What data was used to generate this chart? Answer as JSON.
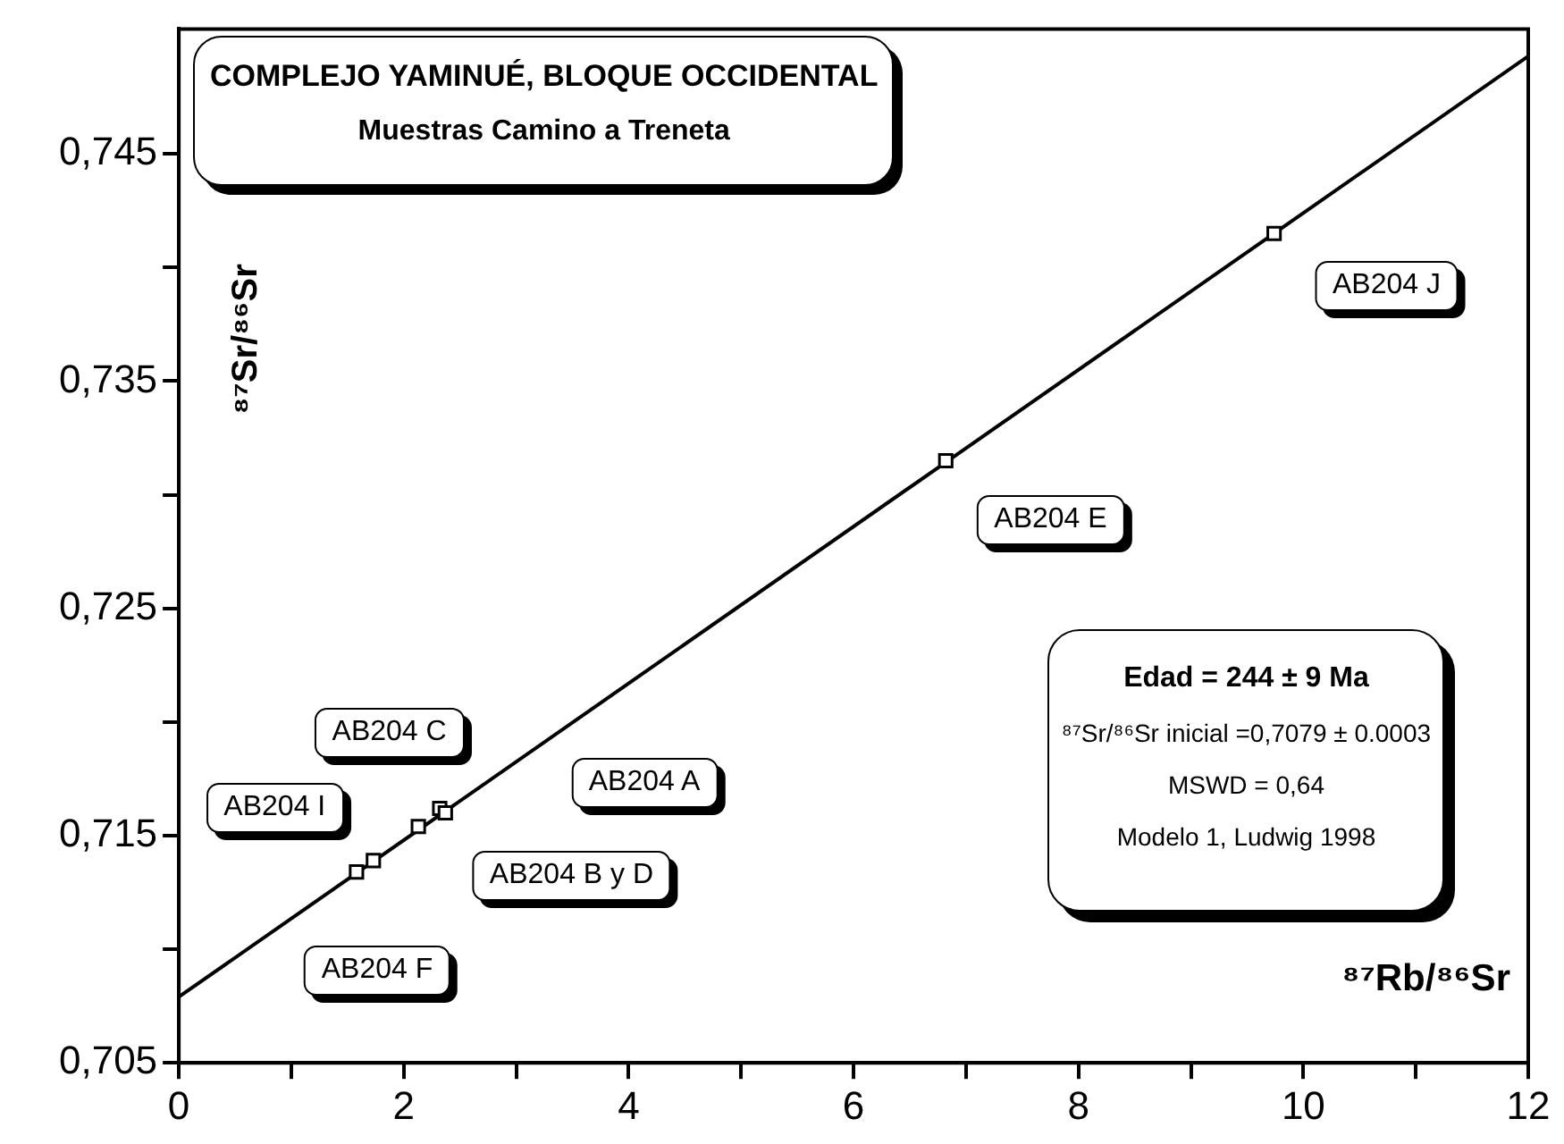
{
  "chart_data": {
    "type": "scatter",
    "title": "COMPLEJO YAMINUÉ, BLOQUE OCCIDENTAL",
    "subtitle": "Muestras Camino a Treneta",
    "xlabel": "⁸⁷Rb/⁸⁶Sr",
    "ylabel": "⁸⁷Sr/⁸⁶Sr",
    "series": [
      {
        "type": "line",
        "x": [
          0,
          12
        ],
        "values": [
          0.7079,
          0.7493
        ],
        "color": "#000000",
        "marker": "none"
      },
      {
        "x": [
          1.58,
          1.73,
          2.13,
          2.32,
          2.37,
          6.82,
          9.74
        ],
        "values": [
          0.7134,
          0.7139,
          0.7154,
          0.7162,
          0.716,
          0.7315,
          0.7415
        ],
        "color": "#000000",
        "marker": "square"
      }
    ],
    "grid": false,
    "legend": false,
    "xlim": [
      0,
      12
    ],
    "xticks": [
      0,
      {
        "value": 1,
        "label": null
      },
      2,
      {
        "value": 3,
        "label": null
      },
      4,
      {
        "value": 5,
        "label": null
      },
      6,
      {
        "value": 7,
        "label": null
      },
      8,
      {
        "value": 9,
        "label": null
      },
      10,
      {
        "value": 11,
        "label": null
      },
      12
    ],
    "ylim": [
      0.705,
      0.7505
    ],
    "yticks": [
      {
        "value": 0.705,
        "label": "0,705"
      },
      {
        "value": 0.71,
        "label": null
      },
      {
        "value": 0.715,
        "label": "0,715"
      },
      {
        "value": 0.72,
        "label": null
      },
      {
        "value": 0.725,
        "label": "0,725"
      },
      {
        "value": 0.73,
        "label": null
      },
      {
        "value": 0.735,
        "label": "0,735"
      },
      {
        "value": 0.74,
        "label": null
      },
      {
        "value": 0.745,
        "label": "0,745"
      }
    ],
    "annotations": [
      "AB204 C",
      "AB204 I",
      "AB204 A",
      "AB204 B y D",
      "AB204 F",
      "AB204 E",
      "AB204 J",
      "Edad = 244 ± 9 Ma",
      "⁸⁷Sr/⁸⁶Sr inicial =0,7079 ± 0.0003",
      "MSWD = 0,64",
      "Modelo 1, Ludwig 1998"
    ]
  }
}
